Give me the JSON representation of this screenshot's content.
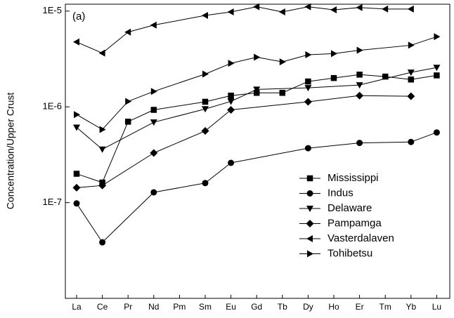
{
  "chart_data": {
    "type": "line",
    "annotation": "(a)",
    "y_label": "Concentration/Upper Crust",
    "y_scale": "log",
    "legend": "lower right",
    "categories": [
      "La",
      "Ce",
      "Pr",
      "Nd",
      "Pm",
      "Sm",
      "Eu",
      "Gd",
      "Tb",
      "Dy",
      "Ho",
      "Er",
      "Tm",
      "Yb",
      "Lu"
    ],
    "ylim": [
      1e-08,
      1.18e-05
    ],
    "yticks": [
      {
        "value": 1e-07,
        "label": "1E-7"
      },
      {
        "value": 1e-06,
        "label": "1E-6"
      },
      {
        "value": 1e-05,
        "label": "1E-5"
      }
    ],
    "series": [
      {
        "name": "Mississippi",
        "color": "#000000",
        "marker": "square",
        "values": [
          2e-07,
          1.62e-07,
          7e-07,
          9.3e-07,
          null,
          1.13e-06,
          1.31e-06,
          1.4e-06,
          1.4e-06,
          1.84e-06,
          2e-06,
          2.17e-06,
          2.07e-06,
          1.93e-06,
          2.13e-06
        ]
      },
      {
        "name": "Indus",
        "color": "#000000",
        "marker": "circle",
        "values": [
          9.8e-08,
          3.85e-08,
          null,
          1.28e-07,
          null,
          1.6e-07,
          2.6e-07,
          null,
          null,
          3.7e-07,
          null,
          4.2e-07,
          null,
          4.3e-07,
          5.4e-07
        ]
      },
      {
        "name": "Delaware",
        "color": "#000000",
        "marker": "triangle-down",
        "values": [
          6.1e-07,
          3.6e-07,
          null,
          6.9e-07,
          null,
          9.5e-07,
          1.14e-06,
          1.52e-06,
          null,
          1.58e-06,
          null,
          1.69e-06,
          null,
          2.29e-06,
          2.57e-06
        ]
      },
      {
        "name": "Pampamga",
        "color": "#000000",
        "marker": "diamond",
        "values": [
          1.43e-07,
          1.51e-07,
          null,
          3.3e-07,
          null,
          5.6e-07,
          9.3e-07,
          null,
          null,
          1.13e-06,
          null,
          1.31e-06,
          null,
          1.29e-06,
          null
        ]
      },
      {
        "name": "Vasterdalaven",
        "color": "#000000",
        "marker": "triangle-left",
        "values": [
          4.76e-06,
          3.64e-06,
          6.03e-06,
          7.14e-06,
          null,
          9e-06,
          9.8e-06,
          1.11e-05,
          9.8e-06,
          1.11e-05,
          1.03e-05,
          1.09e-05,
          1.05e-05,
          1.05e-05,
          null
        ]
      },
      {
        "name": "Tohibetsu",
        "color": "#000000",
        "marker": "triangle-right",
        "values": [
          8.3e-07,
          5.8e-07,
          1.14e-06,
          1.45e-06,
          null,
          2.2e-06,
          2.85e-06,
          3.3e-06,
          2.95e-06,
          3.5e-06,
          3.6e-06,
          3.9e-06,
          null,
          4.4e-06,
          5.4e-06
        ]
      }
    ]
  }
}
